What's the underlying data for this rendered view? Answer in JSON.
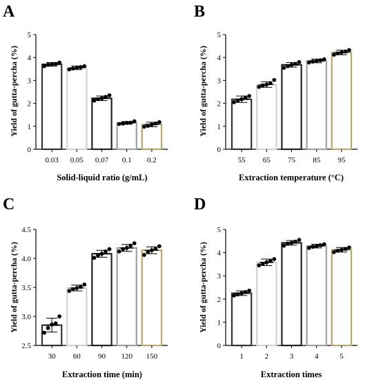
{
  "chart_data": [
    {
      "panel": "A",
      "type": "bar",
      "ylabel": "Yield of gutta-percha (%)",
      "xlabel": "Solid-liquid ratio (g/mL)",
      "categories": [
        "0.03",
        "0.05",
        "0.07",
        "0.1",
        "0.2"
      ],
      "values": [
        3.7,
        3.55,
        2.22,
        1.15,
        1.08
      ],
      "errors": [
        0.08,
        0.08,
        0.1,
        0.06,
        0.1
      ],
      "points": [
        [
          3.62,
          3.68,
          3.7,
          3.72,
          3.78
        ],
        [
          3.48,
          3.52,
          3.55,
          3.58,
          3.62
        ],
        [
          2.12,
          2.18,
          2.22,
          2.28,
          2.35
        ],
        [
          1.1,
          1.12,
          1.15,
          1.16,
          1.22
        ],
        [
          0.98,
          1.02,
          1.08,
          1.12,
          1.18
        ]
      ],
      "yticks": [
        "0",
        "1",
        "2",
        "3",
        "4",
        "5"
      ],
      "ylim": [
        0,
        5
      ],
      "colors": [
        "#333333",
        "#d3d3d3",
        "#222222",
        "#a0a0a0",
        "#b5a86a"
      ]
    },
    {
      "panel": "B",
      "type": "bar",
      "ylabel": "Yield of gutta-percha (%)",
      "xlabel": "Extraction temperature (°C)",
      "categories": [
        "55",
        "65",
        "75",
        "85",
        "95"
      ],
      "values": [
        2.18,
        2.82,
        3.68,
        3.85,
        4.22
      ],
      "errors": [
        0.14,
        0.12,
        0.1,
        0.08,
        0.1
      ],
      "points": [
        [
          2.05,
          2.12,
          2.18,
          2.25,
          2.32
        ],
        [
          2.72,
          2.78,
          2.82,
          2.88,
          3.02
        ],
        [
          3.55,
          3.62,
          3.68,
          3.72,
          3.8
        ],
        [
          3.78,
          3.82,
          3.85,
          3.88,
          3.92
        ],
        [
          4.12,
          4.18,
          4.22,
          4.26,
          4.32
        ]
      ],
      "yticks": [
        "0",
        "1",
        "2",
        "3",
        "4",
        "5"
      ],
      "ylim": [
        0,
        5
      ],
      "colors": [
        "#333333",
        "#d3d3d3",
        "#222222",
        "#a0a0a0",
        "#b5a86a"
      ]
    },
    {
      "panel": "C",
      "type": "bar",
      "ylabel": "Yield of gutta-percha (%)",
      "xlabel": "Extraction time (min)",
      "categories": [
        "30",
        "60",
        "90",
        "120",
        "150"
      ],
      "values": [
        2.85,
        3.49,
        4.08,
        4.18,
        4.14
      ],
      "errors": [
        0.12,
        0.05,
        0.06,
        0.06,
        0.06
      ],
      "points": [
        [
          2.72,
          2.8,
          2.86,
          2.88,
          3.0
        ],
        [
          3.44,
          3.47,
          3.49,
          3.51,
          3.55
        ],
        [
          4.01,
          4.05,
          4.08,
          4.12,
          4.16
        ],
        [
          4.12,
          4.16,
          4.18,
          4.22,
          4.26
        ],
        [
          4.06,
          4.11,
          4.14,
          4.17,
          4.21
        ]
      ],
      "yticks": [
        "2.5",
        "3.0",
        "3.5",
        "4.0",
        "4.5"
      ],
      "ylim": [
        2.5,
        4.5
      ],
      "colors": [
        "#333333",
        "#d3d3d3",
        "#222222",
        "#a0a0a0",
        "#b5a86a"
      ]
    },
    {
      "panel": "D",
      "type": "bar",
      "ylabel": "Yield of gutta-percha (%)",
      "xlabel": "Extraction times",
      "categories": [
        "1",
        "2",
        "3",
        "4",
        "5"
      ],
      "values": [
        2.25,
        3.58,
        4.42,
        4.28,
        4.12
      ],
      "errors": [
        0.1,
        0.14,
        0.1,
        0.08,
        0.1
      ],
      "points": [
        [
          2.15,
          2.2,
          2.25,
          2.3,
          2.36
        ],
        [
          3.45,
          3.52,
          3.58,
          3.64,
          3.72
        ],
        [
          4.3,
          4.38,
          4.42,
          4.47,
          4.55
        ],
        [
          4.2,
          4.25,
          4.28,
          4.32,
          4.36
        ],
        [
          4.02,
          4.08,
          4.12,
          4.16,
          4.22
        ]
      ],
      "yticks": [
        "0",
        "1",
        "2",
        "3",
        "4",
        "5"
      ],
      "ylim": [
        0,
        5
      ],
      "colors": [
        "#333333",
        "#d3d3d3",
        "#222222",
        "#a0a0a0",
        "#b5a86a"
      ]
    }
  ]
}
